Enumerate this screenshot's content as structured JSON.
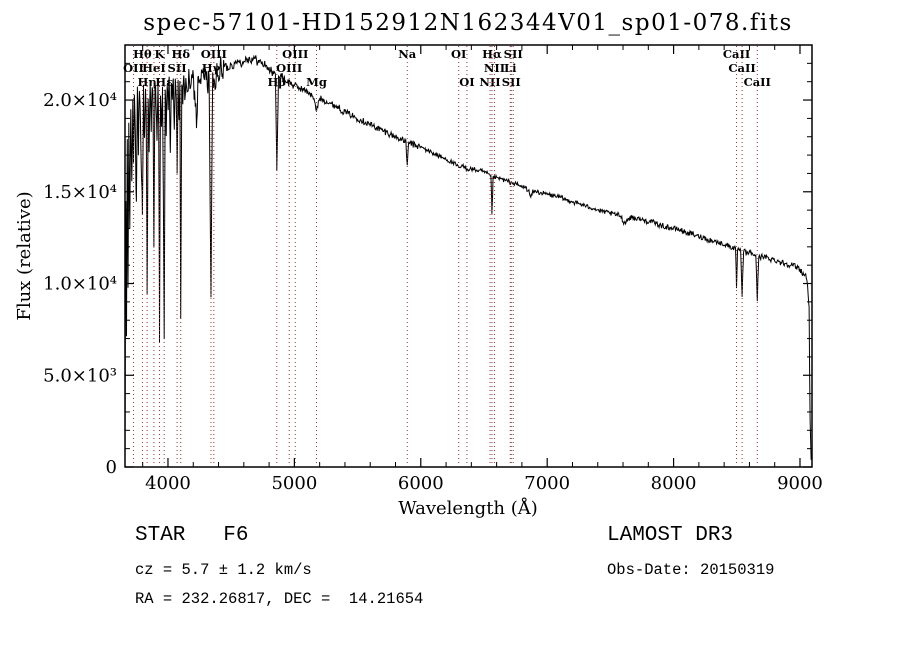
{
  "title": "spec-57101-HD152912N162344V01_sp01-078.fits",
  "colors": {
    "spectrum": "#000000",
    "line_marker": "#993333",
    "axis": "#000000",
    "background": "#ffffff"
  },
  "footer": {
    "class_label": "STAR   F6",
    "survey": "LAMOST DR3",
    "cz": "cz = 5.7 ± 1.2 km/s",
    "obs_date": "Obs-Date: 20150319",
    "coords": "RA = 232.26817, DEC =  14.21654"
  },
  "chart_data": {
    "type": "line",
    "title": "spec-57101-HD152912N162344V01_sp01-078.fits",
    "xlabel": "Wavelength (Å)",
    "ylabel": "Flux (relative)",
    "xlim": [
      3660,
      9095
    ],
    "ylim": [
      0,
      23000
    ],
    "xticks": [
      4000,
      5000,
      6000,
      7000,
      8000,
      9000
    ],
    "yticks": [
      {
        "value": 0,
        "label": "0"
      },
      {
        "value": 5000,
        "label": "5.0×10³"
      },
      {
        "value": 10000,
        "label": "1.0×10⁴"
      },
      {
        "value": 15000,
        "label": "1.5×10⁴"
      },
      {
        "value": 20000,
        "label": "2.0×10⁴"
      }
    ],
    "x_minor_step": 200,
    "y_minor_step": 1000,
    "grid": false,
    "legend": "none",
    "spectral_lines": [
      {
        "wavelength": 3727,
        "label": "OII",
        "row": 2
      },
      {
        "wavelength": 3798,
        "label": "Hθ",
        "row": 1
      },
      {
        "wavelength": 3835,
        "label": "Hη",
        "row": 3
      },
      {
        "wavelength": 3889,
        "label": "HeI",
        "row": 2
      },
      {
        "wavelength": 3933,
        "label": "K",
        "row": 1
      },
      {
        "wavelength": 3970,
        "label": "Hε",
        "row": 3
      },
      {
        "wavelength": 4072,
        "label": "SII",
        "row": 2
      },
      {
        "wavelength": 4101,
        "label": "Hδ",
        "row": 1
      },
      {
        "wavelength": 4340,
        "label": "Hγ",
        "row": 2
      },
      {
        "wavelength": 4363,
        "label": "OIII",
        "row": 1
      },
      {
        "wavelength": 4861,
        "label": "Hβ",
        "row": 3
      },
      {
        "wavelength": 4959,
        "label": "OIII",
        "row": 2
      },
      {
        "wavelength": 5007,
        "label": "OIII",
        "row": 1
      },
      {
        "wavelength": 5175,
        "label": "Mg",
        "row": 3
      },
      {
        "wavelength": 5893,
        "label": "Na",
        "row": 1
      },
      {
        "wavelength": 6300,
        "label": "OI",
        "row": 1
      },
      {
        "wavelength": 6365,
        "label": "OI",
        "row": 3
      },
      {
        "wavelength": 6548,
        "label": "NII",
        "row": 3
      },
      {
        "wavelength": 6563,
        "label": "Hα",
        "row": 1
      },
      {
        "wavelength": 6583,
        "label": "NII",
        "row": 2
      },
      {
        "wavelength": 6708,
        "label": "Li",
        "row": 2
      },
      {
        "wavelength": 6716,
        "label": "SII",
        "row": 3
      },
      {
        "wavelength": 6731,
        "label": "SII",
        "row": 1
      },
      {
        "wavelength": 8498,
        "label": "CaII",
        "row": 1
      },
      {
        "wavelength": 8542,
        "label": "CaII",
        "row": 2
      },
      {
        "wavelength": 8662,
        "label": "CaII",
        "row": 3
      }
    ],
    "series": [
      {
        "name": "spectrum",
        "points": [
          [
            3660,
            300
          ],
          [
            3666,
            14500
          ],
          [
            3672,
            7200
          ],
          [
            3678,
            17800
          ],
          [
            3684,
            9500
          ],
          [
            3690,
            18800
          ],
          [
            3698,
            13000
          ],
          [
            3706,
            19700
          ],
          [
            3714,
            15500
          ],
          [
            3722,
            20200
          ],
          [
            3727,
            16800
          ],
          [
            3734,
            20300
          ],
          [
            3742,
            18000
          ],
          [
            3750,
            14200
          ],
          [
            3758,
            20500
          ],
          [
            3766,
            16800
          ],
          [
            3774,
            20600
          ],
          [
            3782,
            18800
          ],
          [
            3790,
            16200
          ],
          [
            3798,
            13800
          ],
          [
            3806,
            20600
          ],
          [
            3814,
            17800
          ],
          [
            3822,
            20700
          ],
          [
            3828,
            19200
          ],
          [
            3835,
            9500
          ],
          [
            3843,
            20300
          ],
          [
            3851,
            17200
          ],
          [
            3859,
            20800
          ],
          [
            3867,
            18200
          ],
          [
            3875,
            20800
          ],
          [
            3882,
            19600
          ],
          [
            3889,
            12000
          ],
          [
            3897,
            20900
          ],
          [
            3905,
            19800
          ],
          [
            3913,
            17600
          ],
          [
            3921,
            20700
          ],
          [
            3927,
            19000
          ],
          [
            3933,
            7000
          ],
          [
            3941,
            20200
          ],
          [
            3949,
            18800
          ],
          [
            3957,
            20600
          ],
          [
            3963,
            15200
          ],
          [
            3970,
            6700
          ],
          [
            3978,
            20400
          ],
          [
            3986,
            18200
          ],
          [
            3994,
            20900
          ],
          [
            4002,
            19600
          ],
          [
            4010,
            21000
          ],
          [
            4018,
            17200
          ],
          [
            4026,
            21000
          ],
          [
            4034,
            19800
          ],
          [
            4042,
            21100
          ],
          [
            4050,
            18600
          ],
          [
            4058,
            21100
          ],
          [
            4066,
            19800
          ],
          [
            4072,
            16000
          ],
          [
            4080,
            21200
          ],
          [
            4088,
            18900
          ],
          [
            4094,
            21200
          ],
          [
            4101,
            8000
          ],
          [
            4109,
            21000
          ],
          [
            4117,
            19600
          ],
          [
            4125,
            21200
          ],
          [
            4133,
            20100
          ],
          [
            4141,
            21300
          ],
          [
            4155,
            20300
          ],
          [
            4169,
            21300
          ],
          [
            4183,
            20600
          ],
          [
            4197,
            21400
          ],
          [
            4211,
            20400
          ],
          [
            4227,
            18800
          ],
          [
            4241,
            21400
          ],
          [
            4255,
            20900
          ],
          [
            4269,
            21500
          ],
          [
            4283,
            21100
          ],
          [
            4297,
            21600
          ],
          [
            4311,
            20700
          ],
          [
            4325,
            21500
          ],
          [
            4340,
            9200
          ],
          [
            4354,
            21300
          ],
          [
            4368,
            20800
          ],
          [
            4382,
            21600
          ],
          [
            4396,
            21200
          ],
          [
            4412,
            21800
          ],
          [
            4430,
            21400
          ],
          [
            4450,
            21900
          ],
          [
            4475,
            21700
          ],
          [
            4500,
            22000
          ],
          [
            4530,
            21900
          ],
          [
            4560,
            22200
          ],
          [
            4590,
            22000
          ],
          [
            4620,
            22300
          ],
          [
            4650,
            22200
          ],
          [
            4680,
            22300
          ],
          [
            4710,
            22100
          ],
          [
            4740,
            22000
          ],
          [
            4770,
            21900
          ],
          [
            4800,
            21700
          ],
          [
            4830,
            21500
          ],
          [
            4850,
            21350
          ],
          [
            4861,
            16200
          ],
          [
            4874,
            21300
          ],
          [
            4910,
            21200
          ],
          [
            4940,
            21000
          ],
          [
            4970,
            20900
          ],
          [
            5000,
            20800
          ],
          [
            5030,
            20700
          ],
          [
            5060,
            20600
          ],
          [
            5090,
            20500
          ],
          [
            5120,
            20400
          ],
          [
            5150,
            20100
          ],
          [
            5175,
            19400
          ],
          [
            5200,
            20100
          ],
          [
            5230,
            20000
          ],
          [
            5260,
            19900
          ],
          [
            5290,
            19800
          ],
          [
            5320,
            19700
          ],
          [
            5350,
            19600
          ],
          [
            5380,
            19400
          ],
          [
            5410,
            19300
          ],
          [
            5440,
            19200
          ],
          [
            5470,
            19100
          ],
          [
            5500,
            19000
          ],
          [
            5530,
            18900
          ],
          [
            5560,
            18800
          ],
          [
            5590,
            18700
          ],
          [
            5620,
            18600
          ],
          [
            5650,
            18500
          ],
          [
            5680,
            18400
          ],
          [
            5710,
            18300
          ],
          [
            5740,
            18200
          ],
          [
            5770,
            18100
          ],
          [
            5800,
            18000
          ],
          [
            5830,
            17900
          ],
          [
            5860,
            17800
          ],
          [
            5882,
            17750
          ],
          [
            5893,
            16400
          ],
          [
            5905,
            17700
          ],
          [
            5935,
            17600
          ],
          [
            5965,
            17500
          ],
          [
            5995,
            17450
          ],
          [
            6025,
            17350
          ],
          [
            6055,
            17250
          ],
          [
            6085,
            17150
          ],
          [
            6115,
            17050
          ],
          [
            6145,
            16950
          ],
          [
            6175,
            16850
          ],
          [
            6205,
            16750
          ],
          [
            6235,
            16650
          ],
          [
            6265,
            16550
          ],
          [
            6300,
            16300
          ],
          [
            6330,
            16400
          ],
          [
            6365,
            16250
          ],
          [
            6400,
            16250
          ],
          [
            6430,
            16200
          ],
          [
            6460,
            16150
          ],
          [
            6490,
            16100
          ],
          [
            6520,
            16000
          ],
          [
            6545,
            15900
          ],
          [
            6555,
            15850
          ],
          [
            6563,
            13800
          ],
          [
            6572,
            15800
          ],
          [
            6585,
            15780
          ],
          [
            6610,
            15750
          ],
          [
            6640,
            15700
          ],
          [
            6670,
            15600
          ],
          [
            6700,
            15550
          ],
          [
            6730,
            15450
          ],
          [
            6760,
            15400
          ],
          [
            6790,
            15300
          ],
          [
            6820,
            15250
          ],
          [
            6850,
            15100
          ],
          [
            6870,
            14700
          ],
          [
            6890,
            15000
          ],
          [
            6920,
            15000
          ],
          [
            6950,
            14950
          ],
          [
            6980,
            14900
          ],
          [
            7010,
            14850
          ],
          [
            7040,
            14800
          ],
          [
            7070,
            14750
          ],
          [
            7100,
            14700
          ],
          [
            7130,
            14600
          ],
          [
            7160,
            14550
          ],
          [
            7190,
            14500
          ],
          [
            7220,
            14400
          ],
          [
            7250,
            14350
          ],
          [
            7280,
            14300
          ],
          [
            7310,
            14200
          ],
          [
            7340,
            14150
          ],
          [
            7370,
            14100
          ],
          [
            7400,
            14000
          ],
          [
            7430,
            13950
          ],
          [
            7460,
            13900
          ],
          [
            7490,
            13850
          ],
          [
            7520,
            13800
          ],
          [
            7550,
            13750
          ],
          [
            7580,
            13700
          ],
          [
            7600,
            13400
          ],
          [
            7620,
            13300
          ],
          [
            7640,
            13550
          ],
          [
            7670,
            13600
          ],
          [
            7700,
            13550
          ],
          [
            7730,
            13500
          ],
          [
            7760,
            13450
          ],
          [
            7790,
            13400
          ],
          [
            7820,
            13350
          ],
          [
            7850,
            13300
          ],
          [
            7880,
            13200
          ],
          [
            7910,
            13150
          ],
          [
            7940,
            13100
          ],
          [
            7970,
            13050
          ],
          [
            8000,
            13000
          ],
          [
            8030,
            12950
          ],
          [
            8060,
            12900
          ],
          [
            8090,
            12800
          ],
          [
            8120,
            12750
          ],
          [
            8150,
            12700
          ],
          [
            8180,
            12600
          ],
          [
            8210,
            12550
          ],
          [
            8240,
            12500
          ],
          [
            8270,
            12400
          ],
          [
            8300,
            12350
          ],
          [
            8330,
            12300
          ],
          [
            8360,
            12200
          ],
          [
            8390,
            12150
          ],
          [
            8420,
            12100
          ],
          [
            8450,
            12000
          ],
          [
            8480,
            11950
          ],
          [
            8490,
            11900
          ],
          [
            8498,
            9700
          ],
          [
            8506,
            11850
          ],
          [
            8530,
            11800
          ],
          [
            8542,
            9300
          ],
          [
            8554,
            11750
          ],
          [
            8580,
            11700
          ],
          [
            8620,
            11650
          ],
          [
            8650,
            11550
          ],
          [
            8662,
            9100
          ],
          [
            8674,
            11500
          ],
          [
            8700,
            11450
          ],
          [
            8730,
            11400
          ],
          [
            8760,
            11350
          ],
          [
            8790,
            11300
          ],
          [
            8820,
            11250
          ],
          [
            8850,
            11150
          ],
          [
            8880,
            11100
          ],
          [
            8910,
            11050
          ],
          [
            8940,
            11000
          ],
          [
            8970,
            10900
          ],
          [
            9000,
            10800
          ],
          [
            9015,
            10600
          ],
          [
            9030,
            10450
          ],
          [
            9045,
            10550
          ],
          [
            9060,
            9800
          ],
          [
            9072,
            8800
          ],
          [
            9080,
            2500
          ],
          [
            9088,
            400
          ]
        ]
      }
    ]
  }
}
